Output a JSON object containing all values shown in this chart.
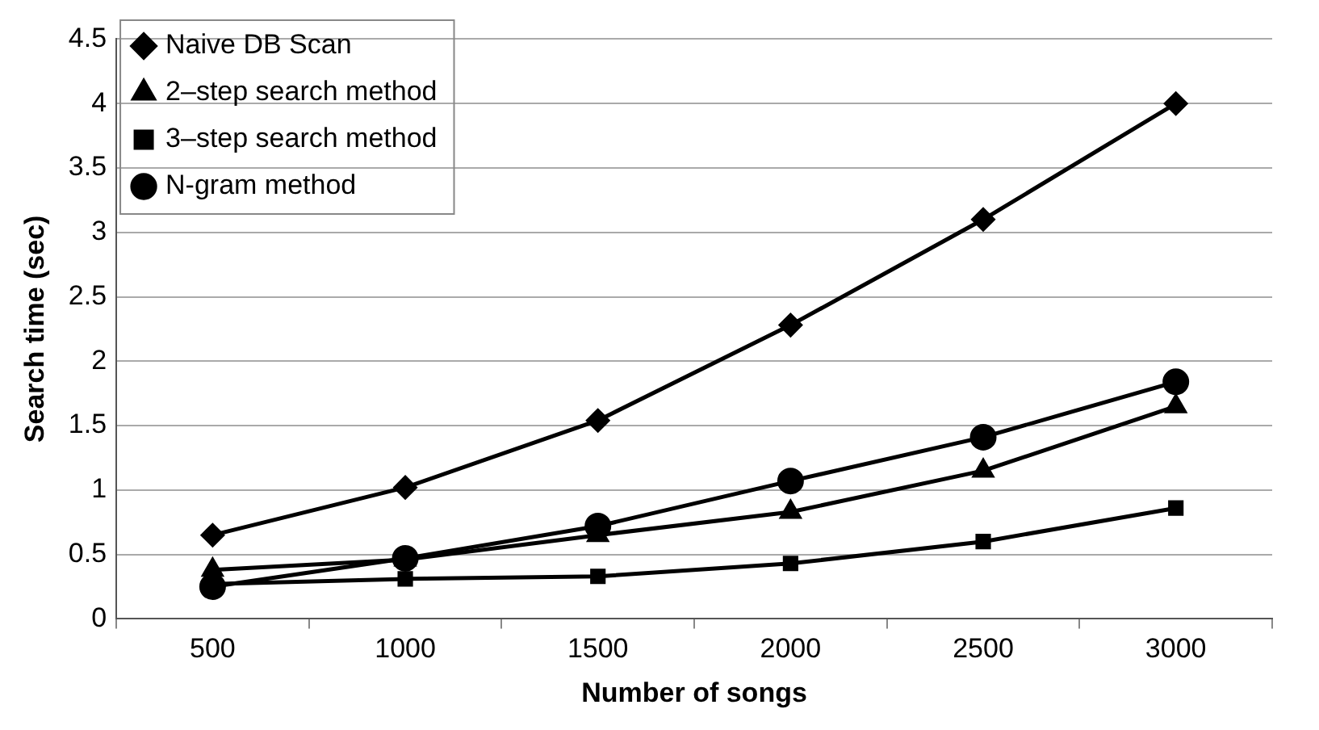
{
  "chart_data": {
    "type": "line",
    "xlabel": "Number of songs",
    "ylabel": "Search time (sec)",
    "categories": [
      "500",
      "1000",
      "1500",
      "2000",
      "2500",
      "3000"
    ],
    "series": [
      {
        "name": "Naive DB Scan",
        "color": "#000000",
        "marker": "diamond",
        "values": [
          0.65,
          1.02,
          1.54,
          2.28,
          3.1,
          4.0
        ]
      },
      {
        "name": "2–step search method",
        "color": "#000000",
        "marker": "triangle",
        "values": [
          0.38,
          0.46,
          0.65,
          0.83,
          1.15,
          1.65
        ]
      },
      {
        "name": "3–step search method",
        "color": "#000000",
        "marker": "square",
        "values": [
          0.27,
          0.31,
          0.33,
          0.43,
          0.6,
          0.86
        ]
      },
      {
        "name": "N-gram method",
        "color": "#000000",
        "marker": "circle",
        "values": [
          0.25,
          0.47,
          0.72,
          1.07,
          1.41,
          1.84
        ]
      }
    ],
    "ylim": [
      0,
      4.5
    ],
    "yticks": [
      0,
      0.5,
      1,
      1.5,
      2,
      2.5,
      3,
      3.5,
      4,
      4.5
    ],
    "grid": "y",
    "legend": "top left",
    "line_style": "solid"
  }
}
